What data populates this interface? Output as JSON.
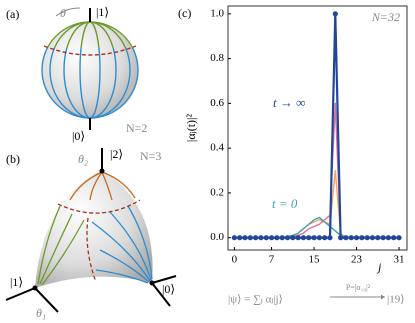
{
  "chart_data": {
    "type": "line",
    "panel_label": "(c)",
    "annotation": "N=32",
    "y_label": "|αⱼ(t)|²",
    "x_label": "j",
    "formula_left": "|ψ⟩ = ∑ⱼ αⱼ|j⟩",
    "arrow_label": "P=|α₁₉|²",
    "formula_right": "|19⟩",
    "x": [
      0,
      1,
      2,
      3,
      4,
      5,
      6,
      7,
      8,
      9,
      10,
      11,
      12,
      13,
      14,
      15,
      16,
      17,
      18,
      19,
      20,
      21,
      22,
      23,
      24,
      25,
      26,
      27,
      28,
      29,
      30,
      31
    ],
    "xlim": [
      -1.2,
      32.5
    ],
    "ylim": [
      -0.055,
      1.035
    ],
    "xticks": [
      0,
      7,
      15,
      23,
      31
    ],
    "yticks": [
      {
        "value": 0,
        "label": "0.0"
      },
      {
        "value": 0.2,
        "label": "0.2"
      },
      {
        "value": 0.4,
        "label": "0.4"
      },
      {
        "value": 0.6,
        "label": "0.6"
      },
      {
        "value": 0.8,
        "label": "0.8"
      },
      {
        "value": 1,
        "label": "1.0"
      }
    ],
    "series": [
      {
        "color": "#f2a65a",
        "values": [
          0,
          0,
          0,
          0,
          0,
          0,
          0,
          0,
          0,
          0,
          0.005,
          0.01,
          0.02,
          0.04,
          0.06,
          0.07,
          0.08,
          0.07,
          0.06,
          0.3,
          0.02,
          0,
          0,
          0,
          0,
          0,
          0,
          0,
          0,
          0,
          0,
          0
        ]
      },
      {
        "color": "#e0708f",
        "values": [
          0,
          0,
          0,
          0,
          0,
          0,
          0,
          0,
          0,
          0,
          0,
          0.005,
          0.01,
          0.02,
          0.04,
          0.05,
          0.06,
          0.08,
          0.1,
          0.6,
          0.01,
          0,
          0,
          0,
          0,
          0,
          0,
          0,
          0,
          0,
          0,
          0
        ]
      },
      {
        "name": "t = 0",
        "color": "#3f9fb0",
        "values": [
          0,
          0,
          0,
          0,
          0,
          0,
          0,
          0,
          0,
          0,
          0.005,
          0.01,
          0.02,
          0.04,
          0.06,
          0.08,
          0.09,
          0.07,
          0.05,
          0.03,
          0.01,
          0,
          0,
          0,
          0,
          0,
          0,
          0,
          0,
          0,
          0,
          0
        ]
      },
      {
        "name": "t → ∞",
        "color": "#22479a",
        "markers": true,
        "values": [
          0,
          0,
          0,
          0,
          0,
          0,
          0,
          0,
          0,
          0,
          0,
          0,
          0,
          0,
          0,
          0,
          0,
          0,
          0,
          1,
          0,
          0,
          0,
          0,
          0,
          0,
          0,
          0,
          0,
          0,
          0,
          0
        ]
      }
    ]
  },
  "diagrams": {
    "a": {
      "panel_label": "(a)",
      "angle": "θ",
      "top_state": "|1⟩",
      "bottom_state": "|0⟩",
      "annotation": "N=2"
    },
    "b": {
      "panel_label": "(b)",
      "angle_top": "θ₂",
      "top_state": "|2⟩",
      "annotation": "N=3",
      "left_state": "|1⟩",
      "right_state": "|0⟩",
      "angle_left": "θ₁"
    }
  }
}
